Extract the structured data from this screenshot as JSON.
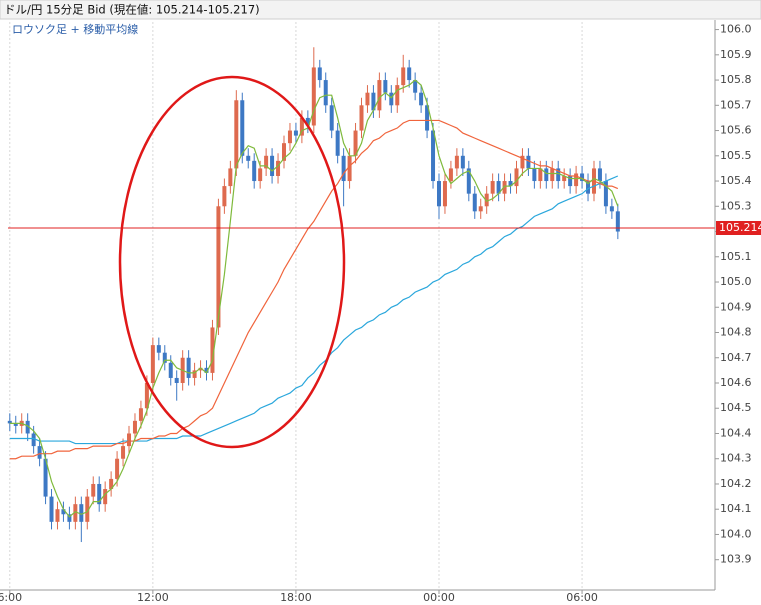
{
  "chart_data": {
    "type": "candlestick",
    "title": "ドル/円 15分足 Bid (現在値: 105.214-105.217)",
    "subtitle": "ロウソク足 + 移動平均線",
    "up_color": "#de6a4e",
    "down_color": "#3d78c4",
    "xlim": [
      -0.3,
      118.3
    ],
    "xticks": [
      {
        "value": 0,
        "label": "6:00"
      },
      {
        "value": 24,
        "label": "12:00"
      },
      {
        "value": 48,
        "label": "18:00"
      },
      {
        "value": 72,
        "label": "00:00"
      },
      {
        "value": 96,
        "label": "06:00"
      }
    ],
    "grid": true,
    "ylim": [
      103.78,
      106.03
    ],
    "yticks": [
      {
        "value": 106.0,
        "label": "106.0"
      },
      105.9,
      105.8,
      105.7,
      105.6,
      105.5,
      105.4,
      105.3,
      105.2,
      105.1,
      {
        "value": 105.0,
        "label": "105.0"
      },
      104.9,
      104.8,
      104.7,
      104.6,
      104.5,
      104.4,
      104.3,
      104.2,
      104.1,
      {
        "value": 104.0,
        "label": "104.0"
      },
      103.9
    ],
    "current_price": 105.214,
    "current_color": "#e02020",
    "open": [
      104.45,
      104.44,
      104.43,
      104.45,
      104.4,
      104.35,
      104.3,
      104.15,
      104.05,
      104.1,
      104.08,
      104.05,
      104.12,
      104.05,
      104.15,
      104.2,
      104.12,
      104.18,
      104.22,
      104.3,
      104.35,
      104.4,
      104.45,
      104.5,
      104.6,
      104.75,
      104.72,
      104.68,
      104.62,
      104.6,
      104.7,
      104.62,
      104.65,
      104.66,
      104.64,
      104.82,
      105.3,
      105.38,
      105.45,
      105.72,
      105.5,
      105.48,
      105.4,
      105.45,
      105.5,
      105.42,
      105.48,
      105.55,
      105.6,
      105.58,
      105.65,
      105.62,
      105.85,
      105.8,
      105.7,
      105.6,
      105.5,
      105.4,
      105.5,
      105.6,
      105.7,
      105.75,
      105.68,
      105.8,
      105.75,
      105.7,
      105.78,
      105.85,
      105.8,
      105.75,
      105.7,
      105.6,
      105.4,
      105.3,
      105.4,
      105.45,
      105.5,
      105.45,
      105.35,
      105.28,
      105.3,
      105.35,
      105.4,
      105.35,
      105.4,
      105.38,
      105.45,
      105.5,
      105.45,
      105.4,
      105.45,
      105.4,
      105.45,
      105.4,
      105.42,
      105.38,
      105.43,
      105.4,
      105.35,
      105.45,
      105.4,
      105.3,
      105.28
    ],
    "high": [
      104.48,
      104.47,
      104.48,
      104.48,
      104.43,
      104.38,
      104.33,
      104.18,
      104.13,
      104.13,
      104.11,
      104.15,
      104.15,
      104.18,
      104.23,
      104.23,
      104.21,
      104.25,
      104.33,
      104.38,
      104.43,
      104.48,
      104.53,
      104.63,
      104.78,
      104.78,
      104.75,
      104.71,
      104.65,
      104.73,
      104.73,
      104.68,
      104.69,
      104.69,
      104.85,
      105.33,
      105.41,
      105.48,
      105.76,
      105.75,
      105.53,
      105.51,
      105.48,
      105.53,
      105.53,
      105.51,
      105.58,
      105.63,
      105.63,
      105.68,
      105.68,
      105.93,
      105.88,
      105.83,
      105.73,
      105.63,
      105.53,
      105.53,
      105.63,
      105.73,
      105.78,
      105.78,
      105.83,
      105.83,
      105.78,
      105.81,
      105.9,
      105.88,
      105.83,
      105.78,
      105.73,
      105.63,
      105.43,
      105.43,
      105.48,
      105.53,
      105.53,
      105.48,
      105.38,
      105.33,
      105.38,
      105.43,
      105.43,
      105.43,
      105.43,
      105.48,
      105.53,
      105.53,
      105.48,
      105.48,
      105.48,
      105.48,
      105.48,
      105.45,
      105.45,
      105.46,
      105.46,
      105.43,
      105.48,
      105.48,
      105.43,
      105.33,
      105.31
    ],
    "low": [
      104.41,
      104.4,
      104.4,
      104.37,
      104.32,
      104.27,
      104.12,
      104.02,
      104.02,
      104.05,
      104.02,
      104.02,
      103.97,
      104.02,
      104.12,
      104.09,
      104.09,
      104.15,
      104.19,
      104.27,
      104.32,
      104.37,
      104.42,
      104.47,
      104.57,
      104.69,
      104.65,
      104.59,
      104.53,
      104.57,
      104.59,
      104.59,
      104.62,
      104.61,
      104.61,
      104.79,
      105.27,
      105.35,
      105.42,
      105.47,
      105.45,
      105.37,
      105.37,
      105.42,
      105.39,
      105.39,
      105.45,
      105.52,
      105.55,
      105.55,
      105.59,
      105.59,
      105.77,
      105.67,
      105.57,
      105.47,
      105.3,
      105.37,
      105.47,
      105.57,
      105.67,
      105.65,
      105.65,
      105.72,
      105.67,
      105.67,
      105.75,
      105.77,
      105.72,
      105.67,
      105.57,
      105.37,
      105.25,
      105.27,
      105.37,
      105.42,
      105.42,
      105.32,
      105.25,
      105.25,
      105.27,
      105.32,
      105.32,
      105.32,
      105.35,
      105.35,
      105.42,
      105.42,
      105.37,
      105.37,
      105.37,
      105.37,
      105.37,
      105.37,
      105.35,
      105.35,
      105.37,
      105.32,
      105.32,
      105.37,
      105.27,
      105.25,
      105.17
    ],
    "close": [
      104.44,
      104.43,
      104.45,
      104.4,
      104.35,
      104.3,
      104.15,
      104.05,
      104.1,
      104.08,
      104.05,
      104.12,
      104.05,
      104.15,
      104.2,
      104.12,
      104.18,
      104.22,
      104.3,
      104.35,
      104.4,
      104.45,
      104.5,
      104.6,
      104.75,
      104.72,
      104.68,
      104.62,
      104.6,
      104.7,
      104.62,
      104.65,
      104.66,
      104.64,
      104.82,
      105.3,
      105.38,
      105.45,
      105.72,
      105.5,
      105.48,
      105.4,
      105.45,
      105.5,
      105.42,
      105.48,
      105.55,
      105.6,
      105.58,
      105.65,
      105.62,
      105.85,
      105.8,
      105.7,
      105.6,
      105.5,
      105.4,
      105.5,
      105.6,
      105.7,
      105.75,
      105.68,
      105.8,
      105.75,
      105.7,
      105.78,
      105.85,
      105.8,
      105.75,
      105.7,
      105.6,
      105.4,
      105.3,
      105.4,
      105.45,
      105.5,
      105.45,
      105.35,
      105.28,
      105.3,
      105.35,
      105.4,
      105.35,
      105.4,
      105.38,
      105.45,
      105.5,
      105.45,
      105.4,
      105.45,
      105.4,
      105.45,
      105.4,
      105.42,
      105.38,
      105.43,
      105.4,
      105.35,
      105.45,
      105.4,
      105.3,
      105.28,
      105.2
    ],
    "series": [
      {
        "color": "#2aa7dc",
        "values": [
          104.38,
          104.38,
          104.38,
          104.38,
          104.38,
          104.37,
          104.37,
          104.37,
          104.37,
          104.37,
          104.37,
          104.36,
          104.36,
          104.36,
          104.36,
          104.36,
          104.36,
          104.36,
          104.36,
          104.37,
          104.37,
          104.37,
          104.37,
          104.37,
          104.38,
          104.38,
          104.38,
          104.38,
          104.38,
          104.39,
          104.39,
          104.39,
          104.39,
          104.4,
          104.41,
          104.42,
          104.43,
          104.44,
          104.45,
          104.46,
          104.47,
          104.48,
          104.5,
          104.51,
          104.52,
          104.54,
          104.55,
          104.56,
          104.58,
          104.59,
          104.62,
          104.64,
          104.67,
          104.69,
          104.72,
          104.74,
          104.77,
          104.79,
          104.81,
          104.82,
          104.84,
          104.85,
          104.87,
          104.88,
          104.9,
          104.91,
          104.93,
          104.94,
          104.96,
          104.97,
          104.98,
          105.0,
          105.01,
          105.03,
          105.04,
          105.05,
          105.07,
          105.08,
          105.1,
          105.11,
          105.13,
          105.14,
          105.16,
          105.18,
          105.19,
          105.21,
          105.22,
          105.24,
          105.26,
          105.27,
          105.28,
          105.29,
          105.31,
          105.32,
          105.33,
          105.34,
          105.35,
          105.37,
          105.38,
          105.39,
          105.4,
          105.41,
          105.42
        ]
      },
      {
        "color": "#f0643c",
        "values": [
          104.3,
          104.3,
          104.31,
          104.31,
          104.31,
          104.32,
          104.32,
          104.32,
          104.33,
          104.33,
          104.33,
          104.34,
          104.34,
          104.34,
          104.35,
          104.35,
          104.35,
          104.35,
          104.36,
          104.36,
          104.37,
          104.37,
          104.38,
          104.38,
          104.38,
          104.39,
          104.39,
          104.4,
          104.4,
          104.42,
          104.43,
          104.45,
          104.47,
          104.48,
          104.5,
          104.55,
          104.6,
          104.65,
          104.7,
          104.75,
          104.8,
          104.84,
          104.88,
          104.92,
          104.96,
          105.0,
          105.05,
          105.09,
          105.13,
          105.17,
          105.21,
          105.24,
          105.28,
          105.32,
          105.36,
          105.39,
          105.43,
          105.46,
          105.48,
          105.51,
          105.53,
          105.56,
          105.57,
          105.59,
          105.6,
          105.61,
          105.63,
          105.64,
          105.64,
          105.64,
          105.64,
          105.64,
          105.64,
          105.63,
          105.62,
          105.61,
          105.59,
          105.58,
          105.57,
          105.56,
          105.55,
          105.54,
          105.53,
          105.52,
          105.51,
          105.5,
          105.49,
          105.48,
          105.47,
          105.46,
          105.46,
          105.45,
          105.44,
          105.43,
          105.42,
          105.42,
          105.41,
          105.4,
          105.4,
          105.39,
          105.38,
          105.38,
          105.37
        ]
      },
      {
        "color": "#7fba3c",
        "values": [
          104.44,
          104.44,
          104.44,
          104.43,
          104.41,
          104.38,
          104.3,
          104.21,
          104.15,
          104.1,
          104.07,
          104.09,
          104.08,
          104.09,
          104.13,
          104.13,
          104.16,
          104.18,
          104.21,
          104.26,
          104.32,
          104.38,
          104.43,
          104.49,
          104.58,
          104.64,
          104.69,
          104.69,
          104.66,
          104.65,
          104.64,
          104.64,
          104.66,
          104.64,
          104.69,
          104.86,
          105.03,
          105.24,
          105.46,
          105.51,
          105.54,
          105.53,
          105.46,
          105.46,
          105.44,
          105.46,
          105.49,
          105.51,
          105.55,
          105.6,
          105.61,
          105.68,
          105.73,
          105.74,
          105.74,
          105.65,
          105.55,
          105.5,
          105.5,
          105.55,
          105.64,
          105.68,
          105.73,
          105.75,
          105.73,
          105.76,
          105.77,
          105.78,
          105.8,
          105.78,
          105.71,
          105.61,
          105.5,
          105.43,
          105.39,
          105.41,
          105.43,
          105.44,
          105.4,
          105.35,
          105.32,
          105.33,
          105.35,
          105.38,
          105.38,
          105.4,
          105.43,
          105.45,
          105.45,
          105.45,
          105.43,
          105.43,
          105.43,
          105.42,
          105.41,
          105.41,
          105.41,
          105.39,
          105.41,
          105.4,
          105.38,
          105.36,
          105.3
        ]
      }
    ]
  }
}
